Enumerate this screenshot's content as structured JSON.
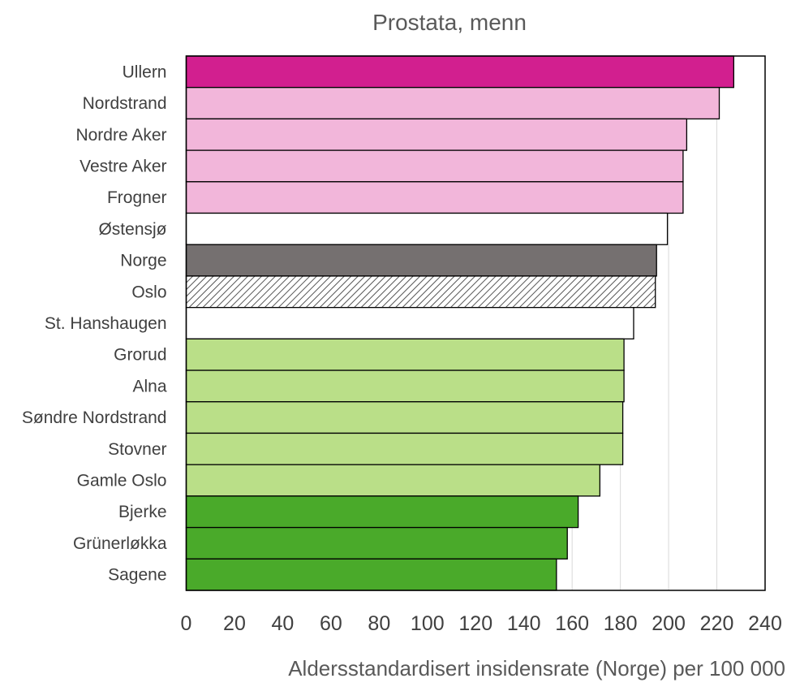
{
  "chart_data": {
    "type": "bar",
    "orientation": "horizontal",
    "title": "Prostata, menn",
    "xlabel": "Aldersstandardisert insidensrate (Norge) per 100 000",
    "ylabel": "",
    "xlim": [
      0,
      240
    ],
    "ticks": [
      0,
      20,
      40,
      60,
      80,
      100,
      120,
      140,
      160,
      180,
      200,
      220,
      240
    ],
    "grid": true,
    "categories": [
      "Ullern",
      "Nordstrand",
      "Nordre Aker",
      "Vestre Aker",
      "Frogner",
      "Østensjø",
      "Norge",
      "Oslo",
      "St. Hanshaugen",
      "Grorud",
      "Alna",
      "Søndre Nordstrand",
      "Stovner",
      "Gamle Oslo",
      "Bjerke",
      "Grünerløkka",
      "Sagene"
    ],
    "values": [
      227,
      221,
      207.5,
      206,
      206,
      199.5,
      195,
      194.5,
      185.5,
      181.5,
      181.5,
      181,
      181,
      171.5,
      162.5,
      158,
      153.5
    ],
    "colors": [
      "#d21f8f",
      "#f2b6da",
      "#f2b6da",
      "#f2b6da",
      "#f2b6da",
      "#ffffff",
      "#757070",
      "hatch",
      "#ffffff",
      "#badf88",
      "#badf88",
      "#badf88",
      "#badf88",
      "#badf88",
      "#4aaa2a",
      "#4aaa2a",
      "#4aaa2a"
    ]
  }
}
